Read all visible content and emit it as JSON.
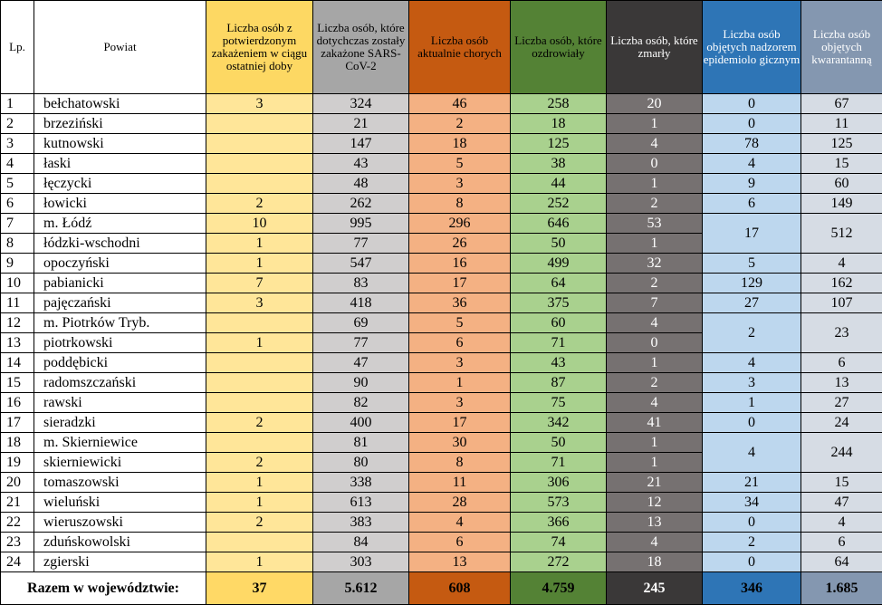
{
  "headers": [
    "Lp.",
    "Powiat",
    "Liczba osób z potwierdzonym zakażeniem w ciągu ostatniej doby",
    "Liczba osób, które dotychczas zostały zakażone SARS-CoV-2",
    "Liczba osób aktualnie chorych",
    "Liczba osób, które ozdrowiały",
    "Liczba osób, które zmarły",
    "Liczba osób objętych nadzorem epidemiolo gicznym",
    "Liczba osób objętych kwarantanną"
  ],
  "rows": [
    {
      "lp": "1",
      "powiat": "bełchatowski",
      "c1": "3",
      "c2": "324",
      "c3": "46",
      "c4": "258",
      "c5": "20",
      "c6": "0",
      "c7": "67"
    },
    {
      "lp": "2",
      "powiat": "brzeziński",
      "c1": "",
      "c2": "21",
      "c3": "2",
      "c4": "18",
      "c5": "1",
      "c6": "0",
      "c7": "11"
    },
    {
      "lp": "3",
      "powiat": "kutnowski",
      "c1": "",
      "c2": "147",
      "c3": "18",
      "c4": "125",
      "c5": "4",
      "c6": "78",
      "c7": "125"
    },
    {
      "lp": "4",
      "powiat": "łaski",
      "c1": "",
      "c2": "43",
      "c3": "5",
      "c4": "38",
      "c5": "0",
      "c6": "4",
      "c7": "15"
    },
    {
      "lp": "5",
      "powiat": "łęczycki",
      "c1": "",
      "c2": "48",
      "c3": "3",
      "c4": "44",
      "c5": "1",
      "c6": "9",
      "c7": "60"
    },
    {
      "lp": "6",
      "powiat": "łowicki",
      "c1": "2",
      "c2": "262",
      "c3": "8",
      "c4": "252",
      "c5": "2",
      "c6": "6",
      "c7": "149"
    },
    {
      "lp": "7",
      "powiat": "m. Łódź",
      "c1": "10",
      "c2": "995",
      "c3": "296",
      "c4": "646",
      "c5": "53"
    },
    {
      "lp": "8",
      "powiat": "łódzki-wschodni",
      "c1": "1",
      "c2": "77",
      "c3": "26",
      "c4": "50",
      "c5": "1"
    },
    {
      "lp": "9",
      "powiat": "opoczyński",
      "c1": "1",
      "c2": "547",
      "c3": "16",
      "c4": "499",
      "c5": "32",
      "c6": "5",
      "c7": "4"
    },
    {
      "lp": "10",
      "powiat": "pabianicki",
      "c1": "7",
      "c2": "83",
      "c3": "17",
      "c4": "64",
      "c5": "2",
      "c6": "129",
      "c7": "162"
    },
    {
      "lp": "11",
      "powiat": "pajęczański",
      "c1": "3",
      "c2": "418",
      "c3": "36",
      "c4": "375",
      "c5": "7",
      "c6": "27",
      "c7": "107"
    },
    {
      "lp": "12",
      "powiat": "m. Piotrków Tryb.",
      "c1": "",
      "c2": "69",
      "c3": "5",
      "c4": "60",
      "c5": "4"
    },
    {
      "lp": "13",
      "powiat": "piotrkowski",
      "c1": "1",
      "c2": "77",
      "c3": "6",
      "c4": "71",
      "c5": "0"
    },
    {
      "lp": "14",
      "powiat": "poddębicki",
      "c1": "",
      "c2": "47",
      "c3": "3",
      "c4": "43",
      "c5": "1",
      "c6": "4",
      "c7": "6"
    },
    {
      "lp": "15",
      "powiat": "radomszczański",
      "c1": "",
      "c2": "90",
      "c3": "1",
      "c4": "87",
      "c5": "2",
      "c6": "3",
      "c7": "13"
    },
    {
      "lp": "16",
      "powiat": "rawski",
      "c1": "",
      "c2": "82",
      "c3": "3",
      "c4": "75",
      "c5": "4",
      "c6": "1",
      "c7": "27"
    },
    {
      "lp": "17",
      "powiat": "sieradzki",
      "c1": "2",
      "c2": "400",
      "c3": "17",
      "c4": "342",
      "c5": "41",
      "c6": "0",
      "c7": "24"
    },
    {
      "lp": "18",
      "powiat": "m. Skierniewice",
      "c1": "",
      "c2": "81",
      "c3": "30",
      "c4": "50",
      "c5": "1"
    },
    {
      "lp": "19",
      "powiat": "skierniewicki",
      "c1": "2",
      "c2": "80",
      "c3": "8",
      "c4": "71",
      "c5": "1"
    },
    {
      "lp": "20",
      "powiat": "tomaszowski",
      "c1": "1",
      "c2": "338",
      "c3": "11",
      "c4": "306",
      "c5": "21",
      "c6": "21",
      "c7": "15"
    },
    {
      "lp": "21",
      "powiat": "wieluński",
      "c1": "1",
      "c2": "613",
      "c3": "28",
      "c4": "573",
      "c5": "12",
      "c6": "34",
      "c7": "47"
    },
    {
      "lp": "22",
      "powiat": "wieruszowski",
      "c1": "2",
      "c2": "383",
      "c3": "4",
      "c4": "366",
      "c5": "13",
      "c6": "0",
      "c7": "4"
    },
    {
      "lp": "23",
      "powiat": "zduńskowolski",
      "c1": "",
      "c2": "84",
      "c3": "6",
      "c4": "74",
      "c5": "4",
      "c6": "2",
      "c7": "6"
    },
    {
      "lp": "24",
      "powiat": "zgierski",
      "c1": "1",
      "c2": "303",
      "c3": "13",
      "c4": "272",
      "c5": "18",
      "c6": "0",
      "c7": "64"
    }
  ],
  "merged": {
    "lodz": {
      "c6": "17",
      "c7": "512"
    },
    "piotrkow": {
      "c6": "2",
      "c7": "23"
    },
    "skierniewice": {
      "c6": "4",
      "c7": "244"
    }
  },
  "totals": {
    "label": "Razem w województwie:",
    "c1": "37",
    "c2": "5.612",
    "c3": "608",
    "c4": "4.759",
    "c5": "245",
    "c6": "346",
    "c7": "1.685"
  },
  "colors": {
    "today": "#ffe699",
    "infected": "#d0cece",
    "sick": "#f4b183",
    "recovered": "#a9d18e",
    "died": "#767171",
    "supervision": "#bdd7ee",
    "quarantine": "#d6dce4"
  }
}
